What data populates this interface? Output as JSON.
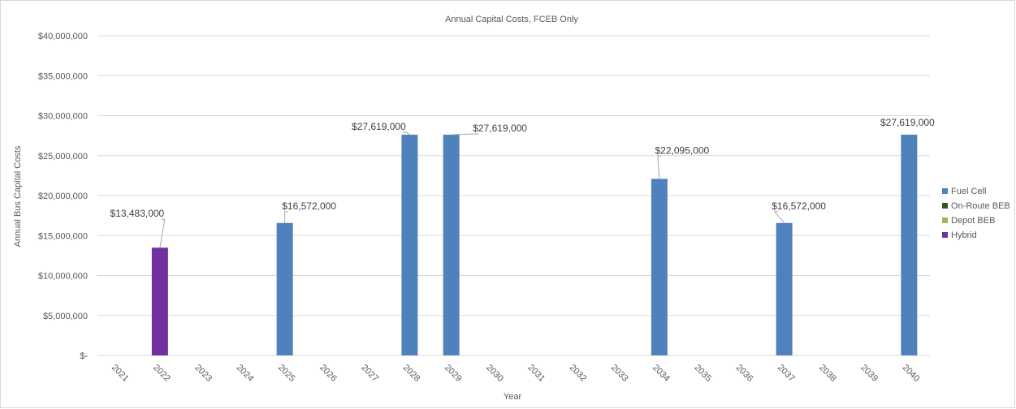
{
  "chart_data": {
    "type": "bar",
    "stacked": true,
    "title": "Annual Capital Costs, FCEB Only",
    "xlabel": "Year",
    "ylabel": "Annual Bus Capital Costs",
    "ylim": [
      0,
      40000000
    ],
    "yticks": [
      "$-",
      "$5,000,000",
      "$10,000,000",
      "$15,000,000",
      "$20,000,000",
      "$25,000,000",
      "$30,000,000",
      "$35,000,000",
      "$40,000,000"
    ],
    "grid": true,
    "legend_position": "right",
    "categories": [
      "2021",
      "2022",
      "2023",
      "2024",
      "2025",
      "2026",
      "2027",
      "2028",
      "2029",
      "2030",
      "2031",
      "2032",
      "2033",
      "2034",
      "2035",
      "2036",
      "2037",
      "2038",
      "2039",
      "2040"
    ],
    "series": [
      {
        "name": "Fuel Cell",
        "color": "#4f81bd",
        "values": [
          0,
          0,
          0,
          0,
          16572000,
          0,
          0,
          27619000,
          27619000,
          0,
          0,
          0,
          0,
          22095000,
          0,
          0,
          16572000,
          0,
          0,
          27619000
        ]
      },
      {
        "name": "On-Route BEB",
        "color": "#375623",
        "values": [
          0,
          0,
          0,
          0,
          0,
          0,
          0,
          0,
          0,
          0,
          0,
          0,
          0,
          0,
          0,
          0,
          0,
          0,
          0,
          0
        ]
      },
      {
        "name": "Depot BEB",
        "color": "#9bbb59",
        "values": [
          0,
          0,
          0,
          0,
          0,
          0,
          0,
          0,
          0,
          0,
          0,
          0,
          0,
          0,
          0,
          0,
          0,
          0,
          0,
          0
        ]
      },
      {
        "name": "Hybrid",
        "color": "#7030a0",
        "values": [
          0,
          13483000,
          0,
          0,
          0,
          0,
          0,
          0,
          0,
          0,
          0,
          0,
          0,
          0,
          0,
          0,
          0,
          0,
          0,
          0
        ]
      }
    ],
    "data_labels": [
      {
        "category": "2022",
        "text": "$13,483,000"
      },
      {
        "category": "2025",
        "text": "$16,572,000"
      },
      {
        "category": "2028",
        "text": "$27,619,000"
      },
      {
        "category": "2029",
        "text": "$27,619,000"
      },
      {
        "category": "2034",
        "text": "$22,095,000"
      },
      {
        "category": "2037",
        "text": "$16,572,000"
      },
      {
        "category": "2040",
        "text": "$27,619,000"
      }
    ]
  }
}
